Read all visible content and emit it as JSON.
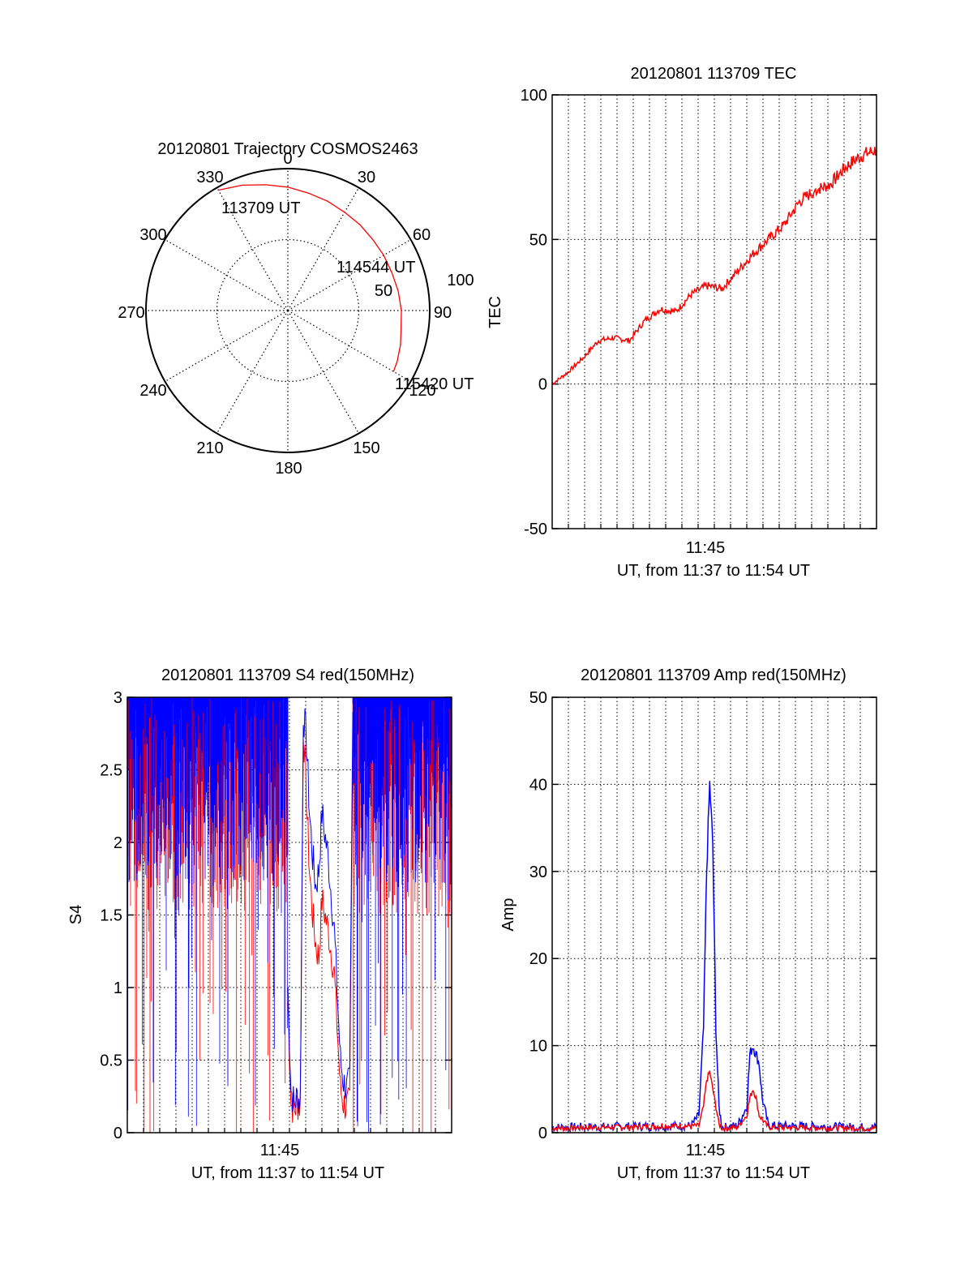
{
  "chart_data": [
    {
      "type": "polar",
      "title": "20120801 Trajectory COSMOS2463",
      "angle_labels": [
        "0",
        "30",
        "60",
        "90",
        "120",
        "150",
        "180",
        "210",
        "240",
        "270",
        "300",
        "330"
      ],
      "radial_labels": [
        "50",
        "100"
      ],
      "rmax": 100,
      "series": [
        {
          "color": "#ff0000",
          "azimuth_deg": [
            -30,
            -20,
            -10,
            0,
            10,
            20,
            30,
            40,
            50,
            60,
            70,
            80,
            90,
            100,
            107,
            115,
            120
          ],
          "radius": [
            98,
            94,
            90,
            87,
            84,
            82,
            80,
            79,
            78,
            78,
            78,
            79,
            80,
            81,
            83,
            85,
            86
          ]
        }
      ],
      "annotations": [
        {
          "text": "113709 UT",
          "azimuth_deg": -30,
          "radius": 98
        },
        {
          "text": "114544 UT",
          "azimuth_deg": 60,
          "radius": 78
        },
        {
          "text": "115420 UT",
          "azimuth_deg": 120,
          "radius": 86
        }
      ]
    },
    {
      "type": "line",
      "title": "20120801 113709 TEC",
      "ylabel": "TEC",
      "xlabel": "UT, from 11:37 to 11:54 UT",
      "x_tick_label": "11:45",
      "ylim": [
        -50,
        100
      ],
      "y_ticks": [
        "-50",
        "0",
        "50",
        "100"
      ],
      "series": [
        {
          "color": "#ff0000",
          "x_min": [
            0,
            1,
            2,
            3,
            4,
            5,
            6,
            7,
            8,
            9,
            10,
            11,
            12,
            13,
            14,
            15,
            16,
            17
          ],
          "values": [
            0,
            4,
            9,
            15,
            16,
            15,
            22,
            26,
            25,
            31,
            34,
            33,
            39,
            45,
            50,
            55,
            63,
            67
          ]
        },
        {
          "color": "#ff0000",
          "x_min": [
            17,
            18,
            19,
            20,
            21
          ],
          "values": [
            67,
            69,
            75,
            79,
            81
          ]
        }
      ]
    },
    {
      "type": "line",
      "title": "20120801 113709 S4 red(150MHz)",
      "ylabel": "S4",
      "xlabel": "UT, from 11:37 to 11:54 UT",
      "x_tick_label": "11:45",
      "ylim": [
        0,
        3
      ],
      "y_ticks": [
        "0",
        "0.5",
        "1",
        "1.5",
        "2",
        "2.5",
        "3"
      ],
      "series": [
        {
          "color": "#ff0000",
          "x_min": [
            10.4,
            10.6,
            10.8,
            11.0,
            11.2,
            11.4,
            11.6,
            11.8,
            12.0,
            12.2,
            12.4,
            12.6,
            13.0,
            13.4,
            13.8,
            14.0,
            14.2,
            14.4,
            14.6
          ],
          "values": [
            0.9,
            0.2,
            0.15,
            0.2,
            0.18,
            2.8,
            2.3,
            1.8,
            1.5,
            1.3,
            1.2,
            1.6,
            1.4,
            1.1,
            0.3,
            0.2,
            0.18,
            0.2,
            2.6
          ]
        },
        {
          "color": "#0000ff",
          "x_min": [
            10.4,
            10.6,
            10.8,
            11.0,
            11.2,
            11.4,
            11.6,
            11.8,
            12.0,
            12.2,
            12.4,
            12.6,
            13.0,
            13.4,
            13.8,
            14.0,
            14.2,
            14.4,
            14.6
          ],
          "values": [
            1.0,
            0.3,
            0.2,
            0.25,
            0.22,
            2.9,
            2.7,
            2.2,
            1.9,
            1.7,
            1.8,
            2.2,
            1.9,
            1.4,
            0.5,
            0.35,
            0.3,
            0.35,
            2.9
          ]
        }
      ]
    },
    {
      "type": "line",
      "title": "20120801 113709 Amp red(150MHz)",
      "ylabel": "Amp",
      "xlabel": "UT, from 11:37 to 11:54 UT",
      "x_tick_label": "11:45",
      "ylim": [
        0,
        50
      ],
      "y_ticks": [
        "0",
        "10",
        "20",
        "30",
        "40",
        "50"
      ],
      "series": [
        {
          "color": "#ff0000",
          "x_min": [
            0,
            9.5,
            9.8,
            10.0,
            10.2,
            10.4,
            10.6,
            10.8,
            11.0,
            12.0,
            12.6,
            12.8,
            13.0,
            13.2,
            13.4,
            14.0,
            21
          ],
          "values": [
            0.5,
            0.8,
            3,
            6,
            7,
            5,
            3,
            1,
            0.5,
            0.6,
            2,
            4,
            5,
            4,
            2,
            0.6,
            0.5
          ]
        },
        {
          "color": "#0000ff",
          "x_min": [
            0,
            9.0,
            9.5,
            9.8,
            10.0,
            10.2,
            10.4,
            10.6,
            10.8,
            11.0,
            12.0,
            12.6,
            12.8,
            13.0,
            13.2,
            13.4,
            13.6,
            14.0,
            21
          ],
          "values": [
            0.6,
            0.8,
            2,
            12,
            30,
            40,
            33,
            12,
            3,
            0.6,
            0.8,
            3,
            9,
            10,
            9,
            8,
            4,
            0.8,
            0.6
          ]
        }
      ]
    }
  ]
}
